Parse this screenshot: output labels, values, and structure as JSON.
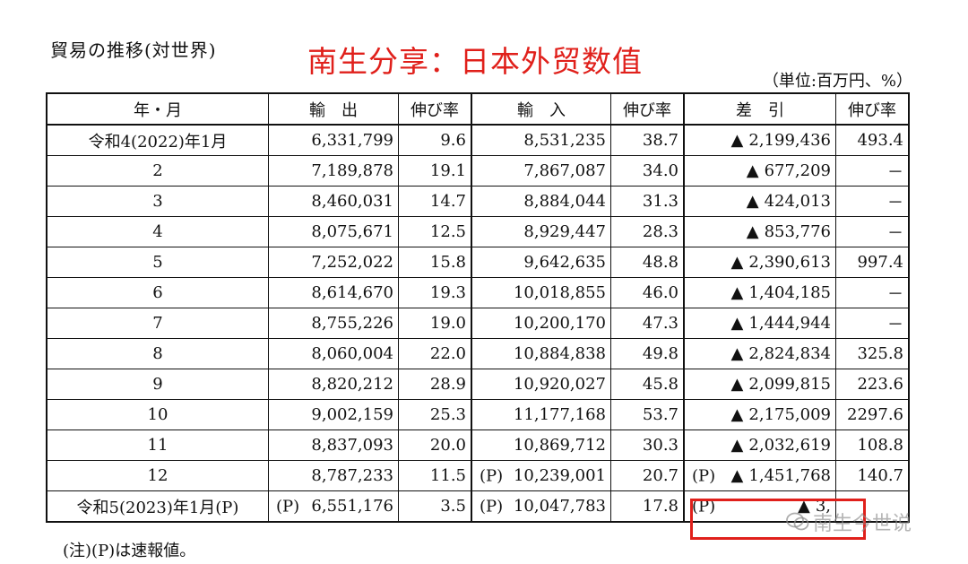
{
  "header": {
    "title": "貿易の推移(対世界)",
    "overlay_title": "南生分享：日本外贸数值",
    "unit": "（単位:百万円、%）"
  },
  "table": {
    "columns": [
      "年・月",
      "輸　出",
      "伸び率",
      "輸　入",
      "伸び率",
      "差　引",
      "伸び率"
    ],
    "rows": [
      {
        "ym": "令和4(2022)年1月",
        "exp_p": "",
        "exp": "6,331,799",
        "exp_g": "9.6",
        "imp_p": "",
        "imp": "8,531,235",
        "imp_g": "38.7",
        "bal_p": "",
        "bal_tri": "▲",
        "bal": "2,199,436",
        "bal_g": "493.4"
      },
      {
        "ym": "2",
        "exp_p": "",
        "exp": "7,189,878",
        "exp_g": "19.1",
        "imp_p": "",
        "imp": "7,867,087",
        "imp_g": "34.0",
        "bal_p": "",
        "bal_tri": "▲",
        "bal": "677,209",
        "bal_g": "－"
      },
      {
        "ym": "3",
        "exp_p": "",
        "exp": "8,460,031",
        "exp_g": "14.7",
        "imp_p": "",
        "imp": "8,884,044",
        "imp_g": "31.3",
        "bal_p": "",
        "bal_tri": "▲",
        "bal": "424,013",
        "bal_g": "－"
      },
      {
        "ym": "4",
        "exp_p": "",
        "exp": "8,075,671",
        "exp_g": "12.5",
        "imp_p": "",
        "imp": "8,929,447",
        "imp_g": "28.3",
        "bal_p": "",
        "bal_tri": "▲",
        "bal": "853,776",
        "bal_g": "－"
      },
      {
        "ym": "5",
        "exp_p": "",
        "exp": "7,252,022",
        "exp_g": "15.8",
        "imp_p": "",
        "imp": "9,642,635",
        "imp_g": "48.8",
        "bal_p": "",
        "bal_tri": "▲",
        "bal": "2,390,613",
        "bal_g": "997.4"
      },
      {
        "ym": "6",
        "exp_p": "",
        "exp": "8,614,670",
        "exp_g": "19.3",
        "imp_p": "",
        "imp": "10,018,855",
        "imp_g": "46.0",
        "bal_p": "",
        "bal_tri": "▲",
        "bal": "1,404,185",
        "bal_g": "－"
      },
      {
        "ym": "7",
        "exp_p": "",
        "exp": "8,755,226",
        "exp_g": "19.0",
        "imp_p": "",
        "imp": "10,200,170",
        "imp_g": "47.3",
        "bal_p": "",
        "bal_tri": "▲",
        "bal": "1,444,944",
        "bal_g": "－"
      },
      {
        "ym": "8",
        "exp_p": "",
        "exp": "8,060,004",
        "exp_g": "22.0",
        "imp_p": "",
        "imp": "10,884,838",
        "imp_g": "49.8",
        "bal_p": "",
        "bal_tri": "▲",
        "bal": "2,824,834",
        "bal_g": "325.8"
      },
      {
        "ym": "9",
        "exp_p": "",
        "exp": "8,820,212",
        "exp_g": "28.9",
        "imp_p": "",
        "imp": "10,920,027",
        "imp_g": "45.8",
        "bal_p": "",
        "bal_tri": "▲",
        "bal": "2,099,815",
        "bal_g": "223.6"
      },
      {
        "ym": "10",
        "exp_p": "",
        "exp": "9,002,159",
        "exp_g": "25.3",
        "imp_p": "",
        "imp": "11,177,168",
        "imp_g": "53.7",
        "bal_p": "",
        "bal_tri": "▲",
        "bal": "2,175,009",
        "bal_g": "2297.6"
      },
      {
        "ym": "11",
        "exp_p": "",
        "exp": "8,837,093",
        "exp_g": "20.0",
        "imp_p": "",
        "imp": "10,869,712",
        "imp_g": "30.3",
        "bal_p": "",
        "bal_tri": "▲",
        "bal": "2,032,619",
        "bal_g": "108.8"
      },
      {
        "ym": "12",
        "exp_p": "",
        "exp": "8,787,233",
        "exp_g": "11.5",
        "imp_p": "(P)",
        "imp": "10,239,001",
        "imp_g": "20.7",
        "bal_p": "(P)",
        "bal_tri": "▲",
        "bal": "1,451,768",
        "bal_g": "140.7"
      },
      {
        "ym": "令和5(2023)年1月(P)",
        "exp_p": "(P)",
        "exp": "6,551,176",
        "exp_g": "3.5",
        "imp_p": "(P)",
        "imp": "10,047,783",
        "imp_g": "17.8",
        "bal_p": "(P)",
        "bal_tri": "▲",
        "bal": "3,",
        "bal_g": ""
      }
    ]
  },
  "watermark": {
    "text": "南生今世说",
    "icon": "wechat-icon"
  },
  "highlight_color": "#e0201b",
  "note": "(注)(P)は速報値。"
}
